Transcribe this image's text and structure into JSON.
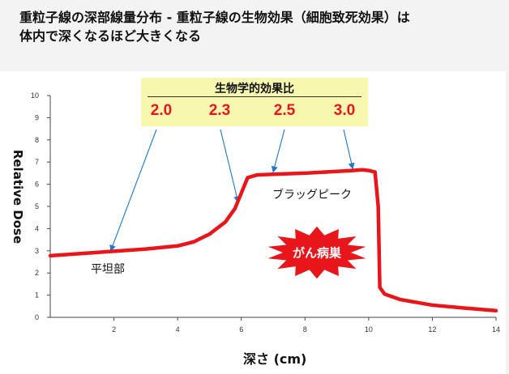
{
  "page": {
    "title_line1": "重粒子線の深部線量分布 - 重粒子線の生物効果（細胞致死効果）は",
    "title_line2": "体内で深くなるほど大きくなる"
  },
  "annotation": {
    "title": "生物学的効果比",
    "rbe_values": [
      "2.0",
      "2.3",
      "2.5",
      "3.0"
    ],
    "plateau_label": "平坦部",
    "peak_label": "ブラッグピーク",
    "tumor_label": "がん病巣"
  },
  "colors": {
    "curve": "#e8161b",
    "arrow": "#1f78c8",
    "highlight": "#f7f7b0",
    "burst": "#e8161b"
  },
  "chart_data": {
    "type": "line",
    "title": "",
    "xlabel": "深さ (cm)",
    "ylabel": "Relative Dose",
    "xlim": [
      0,
      14
    ],
    "ylim": [
      0,
      10
    ],
    "x_ticks": [
      "2",
      "4",
      "6",
      "8",
      "10",
      "12",
      "14"
    ],
    "y_ticks": [
      "0",
      "1",
      "2",
      "3",
      "4",
      "5",
      "6",
      "7",
      "8",
      "9",
      "10"
    ],
    "x": [
      -0.3,
      1,
      2,
      3,
      4,
      4.5,
      5,
      5.5,
      5.8,
      6.0,
      6.2,
      6.5,
      7,
      8,
      9,
      9.5,
      9.8,
      10.0,
      10.2,
      10.3,
      10.35,
      10.5,
      11,
      12,
      13,
      14
    ],
    "y": [
      2.78,
      2.88,
      2.98,
      3.08,
      3.22,
      3.4,
      3.75,
      4.3,
      4.9,
      5.6,
      6.3,
      6.42,
      6.45,
      6.5,
      6.58,
      6.62,
      6.65,
      6.62,
      6.55,
      5.0,
      1.35,
      1.05,
      0.8,
      0.55,
      0.42,
      0.3
    ]
  }
}
